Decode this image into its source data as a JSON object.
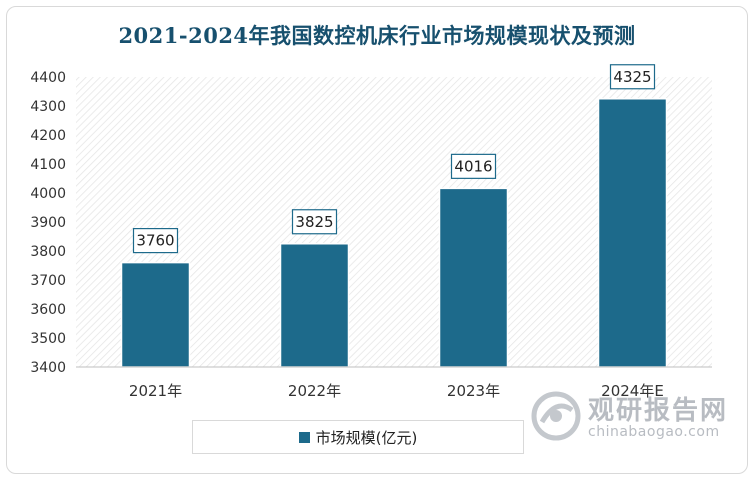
{
  "chart_data": {
    "type": "bar",
    "title": "2021-2024年我国数控机床行业市场规模现状及预测",
    "categories": [
      "2021年",
      "2022年",
      "2023年",
      "2024年E"
    ],
    "series": [
      {
        "name": "市场规模(亿元)",
        "values": [
          3760,
          3825,
          4016,
          4325
        ]
      }
    ],
    "data_labels": [
      "3760",
      "3825",
      "4016",
      "4325"
    ],
    "yticks": [
      "3400",
      "3500",
      "3600",
      "3700",
      "3800",
      "3900",
      "4000",
      "4100",
      "4200",
      "4300",
      "4400"
    ],
    "ylim": [
      3400,
      4400
    ],
    "legend_position": "bottom",
    "grid": false,
    "colors": {
      "bar": "#1d6a8b",
      "title": "#17506e"
    }
  },
  "watermark": {
    "cn": "观研报告网",
    "en": "chinabaogao.com"
  }
}
